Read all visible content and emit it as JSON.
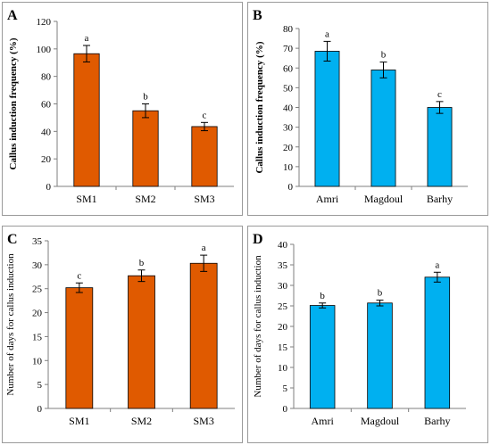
{
  "colors": {
    "orange": "#e05a00",
    "blue": "#00b0f0",
    "frame": "#9a9a9a",
    "axis": "#7f7f7f",
    "error": "#000000"
  },
  "chart_data": [
    {
      "panel": "A",
      "type": "bar",
      "categories": [
        "SM1",
        "SM2",
        "SM3"
      ],
      "values": [
        96.5,
        55,
        43.5
      ],
      "errors": [
        6,
        5,
        3
      ],
      "letters": [
        "a",
        "b",
        "c"
      ],
      "ylabel": "Callus induction frequency (%)",
      "ylim": [
        0,
        120
      ],
      "yticks": [
        0,
        20,
        40,
        60,
        80,
        100,
        120
      ],
      "color": "orange",
      "grid": false
    },
    {
      "panel": "B",
      "type": "bar",
      "categories": [
        "Amri",
        "Magdoul",
        "Barhy"
      ],
      "values": [
        68.5,
        59,
        40
      ],
      "errors": [
        5,
        4,
        3
      ],
      "letters": [
        "a",
        "b",
        "c"
      ],
      "ylabel": "Callus induction frequency (%)",
      "ylim": [
        0,
        80
      ],
      "yticks": [
        0,
        10,
        20,
        30,
        40,
        50,
        60,
        70,
        80
      ],
      "color": "blue",
      "grid": false
    },
    {
      "panel": "C",
      "type": "bar",
      "categories": [
        "SM1",
        "SM2",
        "SM3"
      ],
      "values": [
        25.2,
        27.7,
        30.3
      ],
      "errors": [
        1,
        1.2,
        1.7
      ],
      "letters": [
        "c",
        "b",
        "a"
      ],
      "ylabel": "Number of days for callus induction",
      "ylim": [
        0,
        35
      ],
      "yticks": [
        0,
        5,
        10,
        15,
        20,
        25,
        30,
        35
      ],
      "color": "orange",
      "grid": false
    },
    {
      "panel": "D",
      "type": "bar",
      "categories": [
        "Amri",
        "Magdoul",
        "Barhy"
      ],
      "values": [
        25.1,
        25.7,
        32
      ],
      "errors": [
        0.6,
        0.7,
        1.2
      ],
      "letters": [
        "b",
        "b",
        "a"
      ],
      "ylabel": "Number of days for callus induction",
      "ylim": [
        0,
        40
      ],
      "yticks": [
        0,
        5,
        10,
        15,
        20,
        25,
        30,
        35,
        40
      ],
      "color": "blue",
      "grid": false
    }
  ]
}
